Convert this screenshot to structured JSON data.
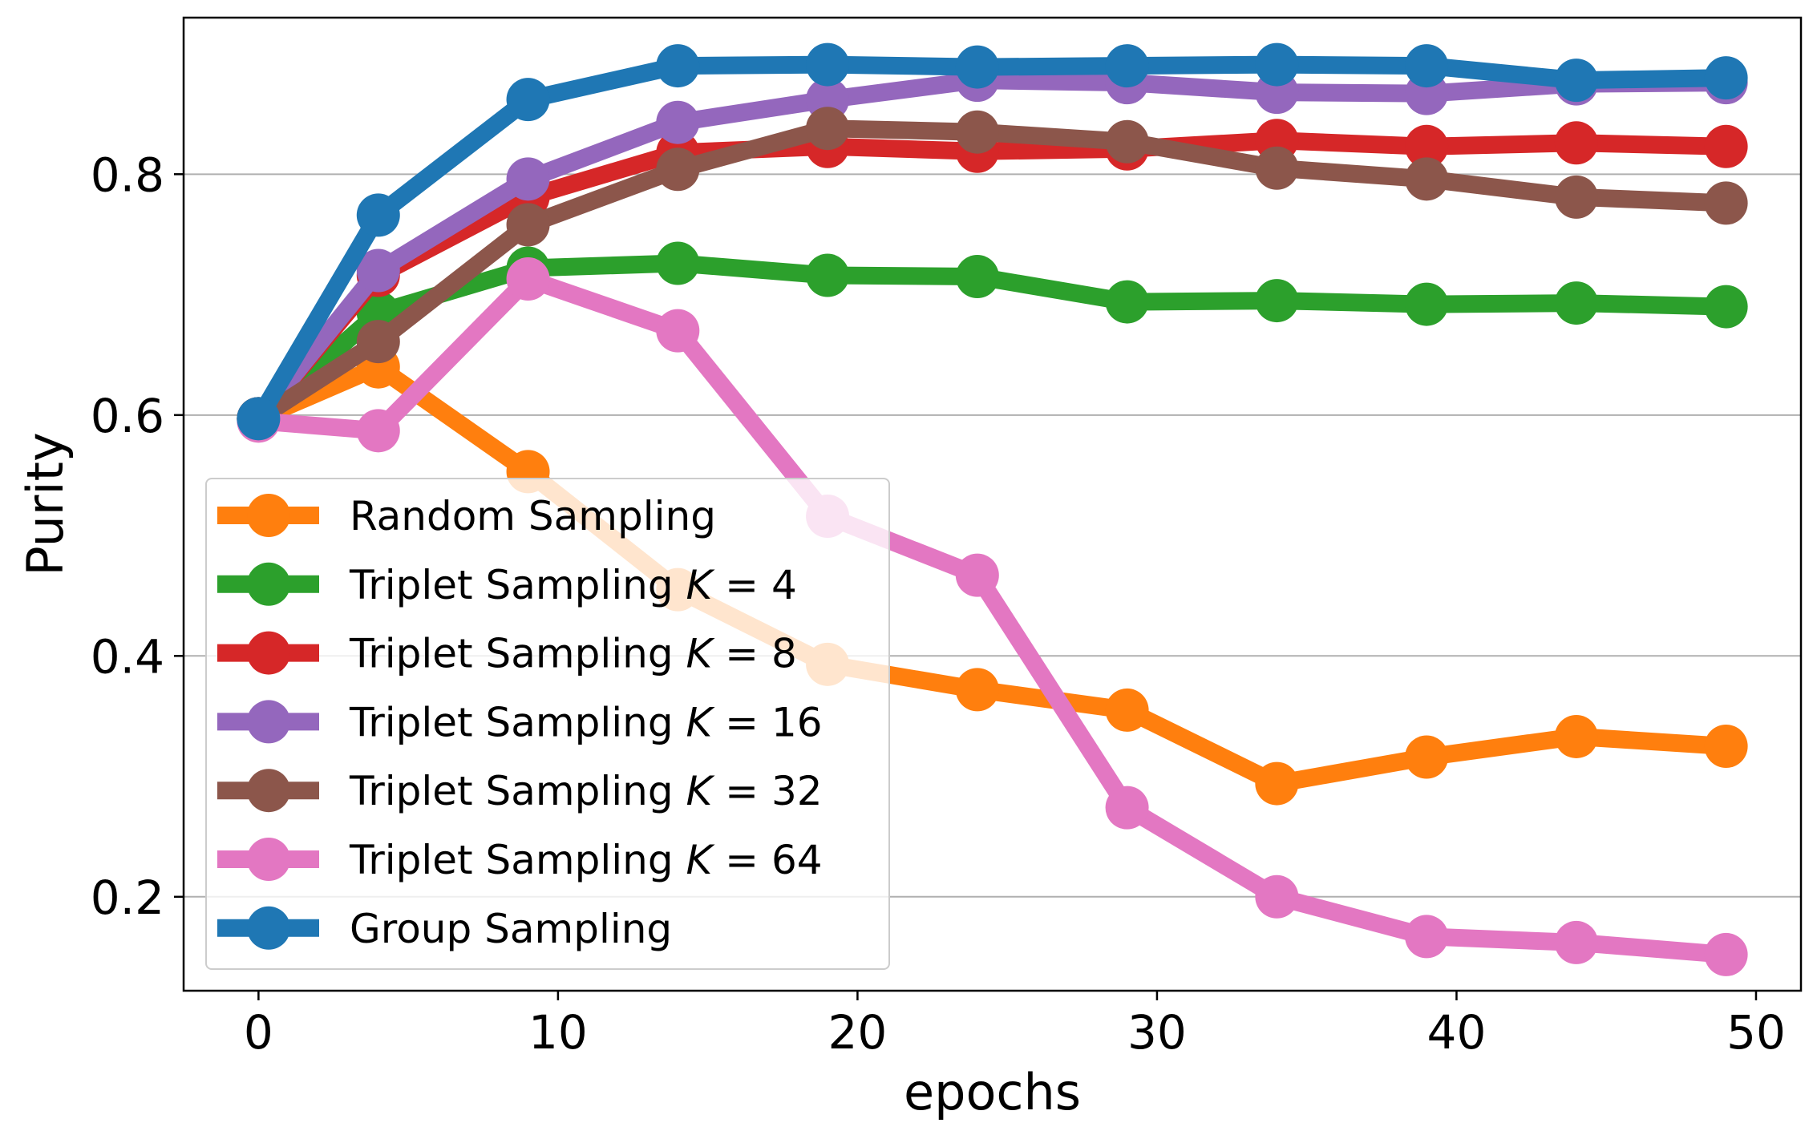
{
  "chart_data": {
    "type": "line",
    "title": "",
    "xlabel": "epochs",
    "ylabel": "Purity",
    "xlim": [
      -2.5,
      51.5
    ],
    "ylim": [
      0.122,
      0.93
    ],
    "xticks": [
      0,
      10,
      20,
      30,
      40,
      50
    ],
    "xtick_labels": [
      "0",
      "10",
      "20",
      "30",
      "40",
      "50"
    ],
    "yticks": [
      0.2,
      0.4,
      0.6,
      0.8
    ],
    "ytick_labels": [
      "0.2",
      "0.4",
      "0.6",
      "0.8"
    ],
    "grid": "horizontal",
    "legend_position": "lower-left",
    "x": [
      0,
      4,
      9,
      14,
      19,
      24,
      29,
      34,
      39,
      44,
      49
    ],
    "series": [
      {
        "name": "Random Sampling",
        "label_text": "Random Sampling",
        "label_var": "",
        "label_value": "",
        "color": "#ff7f0e",
        "values": [
          0.597,
          0.64,
          0.553,
          0.455,
          0.393,
          0.372,
          0.355,
          0.294,
          0.316,
          0.333,
          0.325
        ]
      },
      {
        "name": "Triplet Sampling K=4",
        "label_text": "Triplet Sampling ",
        "label_var": "K",
        "label_value": " = 4",
        "color": "#2ca02c",
        "values": [
          0.597,
          0.685,
          0.722,
          0.726,
          0.716,
          0.715,
          0.694,
          0.695,
          0.692,
          0.693,
          0.69
        ]
      },
      {
        "name": "Triplet Sampling K=8",
        "label_text": "Triplet Sampling ",
        "label_var": "K",
        "label_value": " = 8",
        "color": "#d62728",
        "values": [
          0.597,
          0.716,
          0.781,
          0.818,
          0.823,
          0.819,
          0.821,
          0.828,
          0.823,
          0.826,
          0.823
        ]
      },
      {
        "name": "Triplet Sampling K=16",
        "label_text": "Triplet Sampling ",
        "label_var": "K",
        "label_value": " = 16",
        "color": "#9467bd",
        "values": [
          0.597,
          0.72,
          0.796,
          0.843,
          0.862,
          0.878,
          0.876,
          0.868,
          0.867,
          0.875,
          0.876
        ]
      },
      {
        "name": "Triplet Sampling K=32",
        "label_text": "Triplet Sampling ",
        "label_var": "K",
        "label_value": " = 32",
        "color": "#8c564b",
        "values": [
          0.597,
          0.661,
          0.758,
          0.804,
          0.838,
          0.835,
          0.827,
          0.805,
          0.796,
          0.781,
          0.776
        ]
      },
      {
        "name": "Triplet Sampling K=64",
        "label_text": "Triplet Sampling ",
        "label_var": "K",
        "label_value": " = 64",
        "color": "#e377c2",
        "values": [
          0.595,
          0.587,
          0.713,
          0.67,
          0.516,
          0.467,
          0.274,
          0.2,
          0.167,
          0.162,
          0.152
        ]
      },
      {
        "name": "Group Sampling",
        "label_text": "Group Sampling",
        "label_var": "",
        "label_value": "",
        "color": "#1f77b4",
        "values": [
          0.597,
          0.766,
          0.862,
          0.89,
          0.891,
          0.889,
          0.89,
          0.891,
          0.89,
          0.878,
          0.88
        ]
      }
    ]
  }
}
